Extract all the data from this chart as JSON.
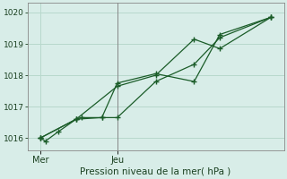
{
  "title": "",
  "xlabel": "Pression niveau de la mer( hPa )",
  "bg_color": "#d8ede8",
  "grid_color": "#b8d8cc",
  "line_color": "#1a5c28",
  "ylim": [
    1015.6,
    1020.3
  ],
  "xlim": [
    0,
    10
  ],
  "xtick_labels": [
    "Mer",
    "Jeu"
  ],
  "xtick_positions": [
    0.5,
    3.5
  ],
  "ytick_values": [
    1016,
    1017,
    1018,
    1019,
    1020
  ],
  "series1_x": [
    0.5,
    0.7,
    1.2,
    1.9,
    2.1,
    2.9,
    3.5,
    5.0,
    6.5,
    7.5,
    9.5
  ],
  "series1_y": [
    1016.0,
    1015.9,
    1016.2,
    1016.6,
    1016.65,
    1016.65,
    1016.65,
    1017.8,
    1018.35,
    1019.2,
    1019.85
  ],
  "series2_x": [
    0.5,
    1.9,
    2.9,
    3.5,
    5.0,
    6.5,
    7.5,
    9.5
  ],
  "series2_y": [
    1016.0,
    1016.6,
    1016.65,
    1017.75,
    1018.05,
    1017.8,
    1019.3,
    1019.85
  ],
  "series3_x": [
    0.5,
    1.9,
    3.5,
    5.0,
    6.5,
    7.5,
    9.5
  ],
  "series3_y": [
    1016.0,
    1016.6,
    1017.65,
    1018.0,
    1019.15,
    1018.85,
    1019.85
  ],
  "vline_x": 3.5,
  "spine_color": "#888888",
  "tick_color": "#1a4020",
  "xlabel_fontsize": 7.5,
  "ytick_fontsize": 6.5,
  "xtick_fontsize": 7.0
}
